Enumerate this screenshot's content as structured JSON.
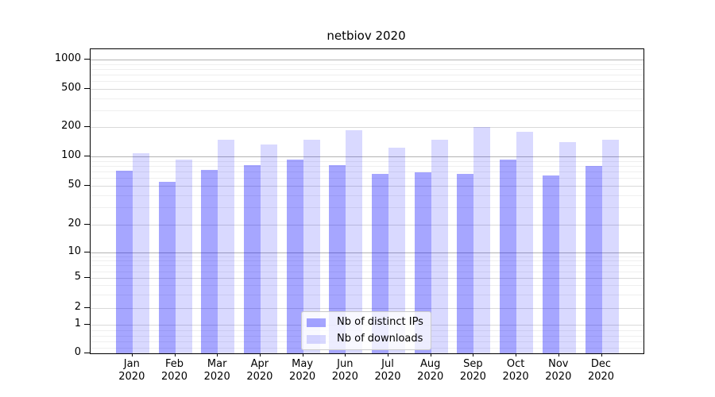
{
  "title": "netbiov 2020",
  "chart_data": {
    "type": "bar",
    "scale": "symlog",
    "title": "netbiov 2020",
    "x_months": [
      "Jan",
      "Feb",
      "Mar",
      "Apr",
      "May",
      "Jun",
      "Jul",
      "Aug",
      "Sep",
      "Oct",
      "Nov",
      "Dec"
    ],
    "x_year": "2020",
    "categories": [
      "Jan 2020",
      "Feb 2020",
      "Mar 2020",
      "Apr 2020",
      "May 2020",
      "Jun 2020",
      "Jul 2020",
      "Aug 2020",
      "Sep 2020",
      "Oct 2020",
      "Nov 2020",
      "Dec 2020"
    ],
    "series": [
      {
        "name": "Nb of distinct IPs",
        "color": "rgba(0,0,255,0.35)",
        "values": [
          71,
          55,
          73,
          81,
          93,
          82,
          66,
          68,
          66,
          92,
          64,
          80
        ]
      },
      {
        "name": "Nb of downloads",
        "color": "rgba(0,0,255,0.15)",
        "values": [
          107,
          93,
          148,
          133,
          148,
          185,
          124,
          150,
          200,
          178,
          140,
          150
        ]
      }
    ],
    "y_ticks": [
      0,
      1,
      2,
      5,
      10,
      20,
      50,
      100,
      200,
      500,
      1000
    ],
    "y_major_ticks": [
      10,
      100,
      1000
    ],
    "ylim": [
      0,
      1000
    ],
    "grid": true,
    "legend_position": "lower-center"
  },
  "colors": {
    "bar_distinct_ips": "rgba(0,0,255,0.35)",
    "bar_downloads": "rgba(0,0,255,0.15)",
    "grid_major": "#b3b3b3",
    "grid_labeled": "#d9d9d9",
    "grid_minor": "#efefef",
    "axis": "#000000",
    "legend_border": "#cbcbcb",
    "legend_bg": "rgba(255,255,255,0.8)"
  }
}
